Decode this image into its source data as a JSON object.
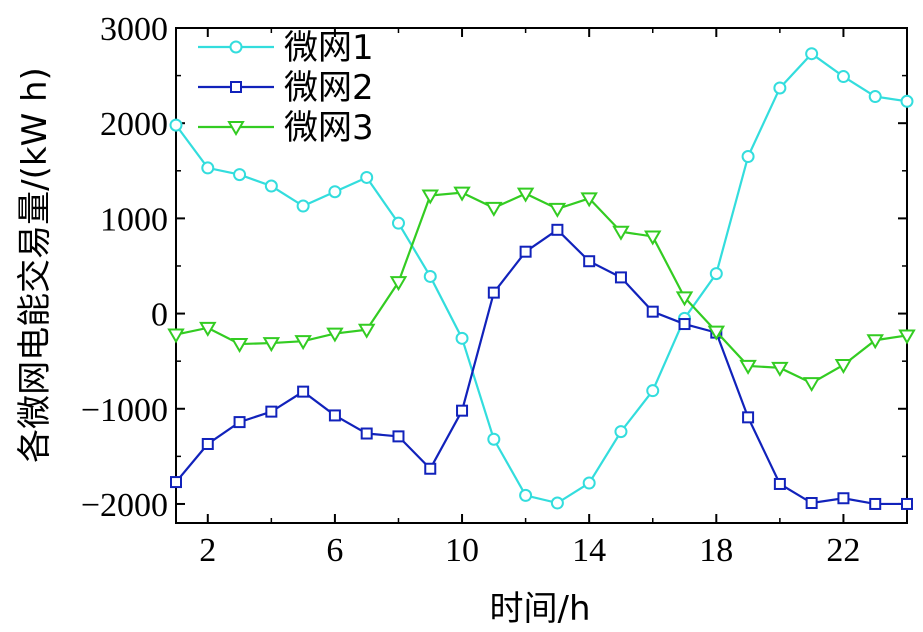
{
  "chart_data": {
    "type": "line",
    "title": "",
    "xlabel": "时间/h",
    "ylabel": "各微网电能交易量/(kW h)",
    "xlim": [
      1,
      24
    ],
    "ylim": [
      -2200,
      3000
    ],
    "xticks": [
      2,
      6,
      10,
      14,
      18,
      22
    ],
    "yticks": [
      -2000,
      -1000,
      0,
      1000,
      2000,
      3000
    ],
    "xtick_labels": [
      "2",
      "6",
      "10",
      "14",
      "18",
      "22"
    ],
    "ytick_labels": [
      "−2000",
      "−1000",
      "0",
      "1000",
      "2000",
      "3000"
    ],
    "x": [
      1,
      2,
      3,
      4,
      5,
      6,
      7,
      8,
      9,
      10,
      11,
      12,
      13,
      14,
      15,
      16,
      17,
      18,
      19,
      20,
      21,
      22,
      23,
      24
    ],
    "legend_position": "top-left",
    "grid": false,
    "series": [
      {
        "name": "微网1",
        "color": "#33dddd",
        "marker": "circle",
        "values": [
          1980,
          1530,
          1460,
          1340,
          1130,
          1280,
          1430,
          950,
          390,
          -260,
          -1320,
          -1910,
          -1990,
          -1780,
          -1240,
          -810,
          -50,
          420,
          1650,
          2370,
          2730,
          2490,
          2280,
          2230
        ]
      },
      {
        "name": "微网2",
        "color": "#1122bb",
        "marker": "square",
        "values": [
          -1770,
          -1370,
          -1140,
          -1030,
          -820,
          -1070,
          -1260,
          -1290,
          -1630,
          -1020,
          220,
          650,
          880,
          550,
          380,
          20,
          -110,
          -200,
          -1090,
          -1790,
          -1990,
          -1940,
          -2000,
          -2000
        ]
      },
      {
        "name": "微网3",
        "color": "#33cc22",
        "marker": "triangle-down",
        "values": [
          -220,
          -150,
          -320,
          -310,
          -290,
          -210,
          -170,
          330,
          1240,
          1270,
          1110,
          1260,
          1100,
          1210,
          860,
          810,
          170,
          -190,
          -550,
          -570,
          -730,
          -540,
          -280,
          -230
        ]
      }
    ]
  }
}
